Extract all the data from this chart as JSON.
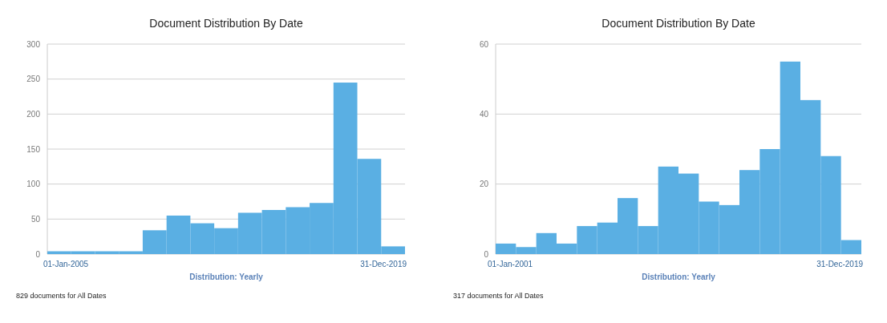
{
  "chart_data": [
    {
      "type": "bar",
      "title": "Document Distribution By Date",
      "xlabel": "Distribution: Yearly",
      "categories": [
        null,
        null,
        null,
        null,
        null,
        null,
        null,
        null,
        null,
        null,
        null,
        null,
        null,
        null,
        null
      ],
      "values": [
        4,
        4,
        4,
        4,
        34,
        55,
        44,
        37,
        59,
        63,
        67,
        73,
        245,
        136,
        11
      ],
      "color": "#5aafe3",
      "ylim": [
        0,
        300
      ],
      "yticks": [
        0,
        50,
        100,
        150,
        200,
        250,
        300
      ],
      "grid": "y",
      "annotations": [
        "01-Jan-2005",
        "31-Dec-2019",
        "829 documents for All Dates"
      ]
    },
    {
      "type": "bar",
      "title": "Document Distribution By Date",
      "xlabel": "Distribution: Yearly",
      "categories": [
        null,
        null,
        null,
        null,
        null,
        null,
        null,
        null,
        null,
        null,
        null,
        null,
        null,
        null,
        null,
        null,
        null,
        null
      ],
      "values": [
        3,
        2,
        6,
        3,
        8,
        9,
        16,
        8,
        25,
        23,
        15,
        14,
        24,
        30,
        55,
        44,
        28,
        4
      ],
      "color": "#5aafe3",
      "ylim": [
        0,
        60
      ],
      "yticks": [
        0,
        20,
        40,
        60
      ],
      "grid": "y",
      "annotations": [
        "01-Jan-2001",
        "31-Dec-2019",
        "317 documents for All Dates"
      ]
    }
  ]
}
